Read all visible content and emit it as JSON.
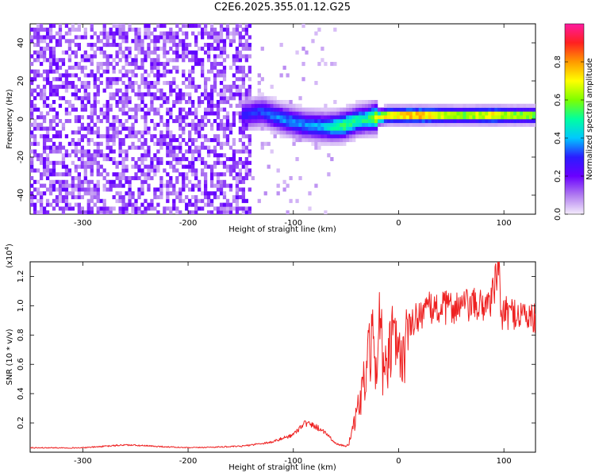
{
  "title": "C2E6.2025.355.01.12.G25",
  "colorbar": {
    "label": "Normalized spectral amplitude",
    "ticks": [
      "0.0",
      "0.2",
      "0.4",
      "0.6",
      "0.8"
    ],
    "tick_values": [
      0.0,
      0.2,
      0.4,
      0.6,
      0.8
    ],
    "range": [
      0,
      1
    ],
    "colors": [
      "#f4ecfb",
      "#b07bf0",
      "#6a00ff",
      "#2b1cff",
      "#00c8ff",
      "#00ffa0",
      "#7dff00",
      "#ffff00",
      "#ff9a00",
      "#ff2020",
      "#ff1aa0"
    ]
  },
  "chart_data": [
    {
      "type": "heatmap",
      "name": "spectrogram",
      "xlabel": "Height of straight line (km)",
      "ylabel": "Frequency (Hz)",
      "xlim": [
        -350,
        130
      ],
      "ylim": [
        -50,
        50
      ],
      "xticks": [
        -300,
        -200,
        -100,
        0,
        100
      ],
      "xtick_labels": [
        "-300",
        "-200",
        "-100",
        "0",
        "100"
      ],
      "yticks": [
        -40,
        -20,
        0,
        20,
        40
      ],
      "ytick_labels": [
        "-40",
        "-20",
        "0",
        "20",
        "40"
      ],
      "ridge": {
        "x": [
          -150,
          -130,
          -110,
          -90,
          -70,
          -60,
          -50,
          -40,
          -30,
          -20,
          -10,
          0,
          20,
          60,
          90,
          100,
          130
        ],
        "freq_hz": [
          2,
          4,
          0,
          -3,
          -4,
          -4,
          -3,
          -1,
          0,
          1,
          2,
          2,
          2,
          2,
          2,
          2,
          2
        ],
        "amplitude": [
          0.3,
          0.35,
          0.4,
          0.4,
          0.45,
          0.55,
          0.6,
          0.55,
          0.55,
          0.75,
          0.8,
          0.85,
          0.9,
          0.7,
          0.85,
          0.75,
          0.7
        ]
      },
      "noise_region_x": [
        -350,
        -140
      ]
    },
    {
      "type": "line",
      "name": "snr",
      "xlabel": "Height of straight line (km)",
      "ylabel": "SNR (10 * v/v)",
      "y_multiplier_label": "(x10",
      "y_multiplier_exp": "4",
      "xlim": [
        -350,
        130
      ],
      "ylim": [
        0,
        1.3
      ],
      "xticks": [
        -300,
        -200,
        -100,
        0,
        100
      ],
      "xtick_labels": [
        "-300",
        "-200",
        "-100",
        "0",
        "100"
      ],
      "yticks": [
        0.2,
        0.4,
        0.6,
        0.8,
        1.0,
        1.2
      ],
      "ytick_labels": [
        "0.2",
        "0.4",
        "0.6",
        "0.8",
        "1.0",
        "1.2"
      ],
      "color": "#ee2222",
      "series": [
        {
          "name": "SNR",
          "x": [
            -350,
            -300,
            -260,
            -200,
            -150,
            -120,
            -100,
            -90,
            -80,
            -70,
            -60,
            -50,
            -45,
            -40,
            -35,
            -30,
            -25,
            -20,
            -17,
            -15,
            -10,
            -5,
            0,
            5,
            10,
            20,
            30,
            40,
            50,
            60,
            70,
            80,
            88,
            92,
            95,
            98,
            100,
            110,
            120,
            130
          ],
          "values": [
            0.03,
            0.03,
            0.05,
            0.03,
            0.04,
            0.07,
            0.12,
            0.2,
            0.18,
            0.14,
            0.06,
            0.04,
            0.1,
            0.25,
            0.4,
            0.58,
            0.75,
            0.6,
            1.1,
            0.5,
            0.6,
            0.8,
            0.62,
            0.7,
            0.85,
            0.95,
            0.98,
            0.98,
            0.99,
            1.0,
            1.0,
            1.0,
            1.05,
            1.15,
            1.27,
            0.9,
            0.95,
            0.95,
            0.94,
            0.9
          ]
        }
      ]
    }
  ]
}
